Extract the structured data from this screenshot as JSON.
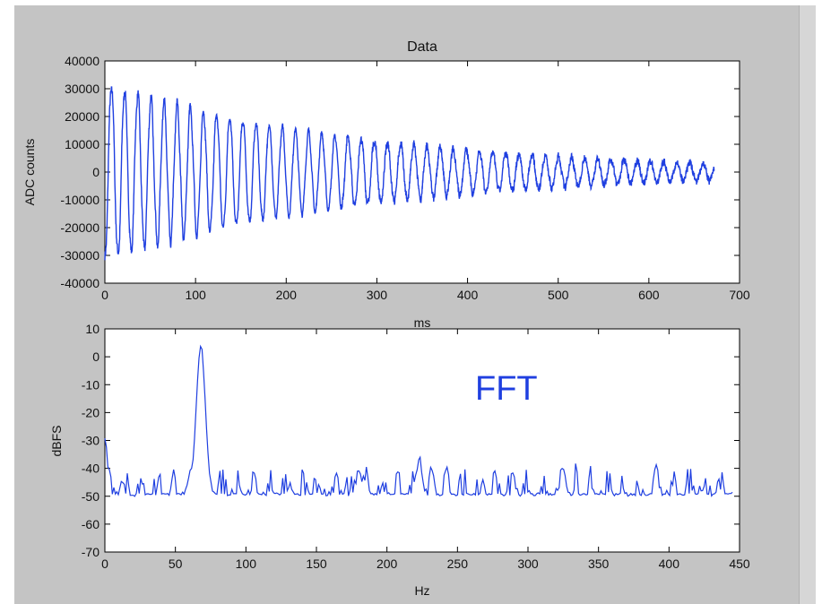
{
  "chart_data": [
    {
      "type": "line",
      "title": "Data",
      "xlabel": "ms",
      "ylabel": "ADC counts",
      "xlim": [
        0,
        700
      ],
      "ylim": [
        -40000,
        40000
      ],
      "xticks": [
        0,
        100,
        200,
        300,
        400,
        500,
        600,
        700
      ],
      "yticks": [
        -40000,
        -30000,
        -20000,
        -10000,
        0,
        10000,
        20000,
        30000,
        40000
      ],
      "color": "#1f3fe0",
      "signal": {
        "kind": "decaying-oscillation",
        "x_end_ms": 672,
        "period_ms": 14.5,
        "start_amplitude": 32000,
        "end_amplitude": 3000
      }
    },
    {
      "type": "line",
      "title": "",
      "xlabel": "Hz",
      "ylabel": "dBFS",
      "annotation": "FFT",
      "xlim": [
        0,
        450
      ],
      "ylim": [
        -70,
        10
      ],
      "xticks": [
        0,
        50,
        100,
        150,
        200,
        250,
        300,
        350,
        400,
        450
      ],
      "yticks": [
        -70,
        -60,
        -50,
        -40,
        -30,
        -20,
        -10,
        0,
        10
      ],
      "color": "#1f3fe0",
      "x_end_hz": 445,
      "peaks": [
        {
          "x": 68,
          "y": 4
        },
        {
          "x": 0,
          "y": -30
        },
        {
          "x": 223,
          "y": -36
        },
        {
          "x": 180,
          "y": -40
        },
        {
          "x": 325,
          "y": -40
        }
      ],
      "noise_floor_db": -50
    }
  ]
}
